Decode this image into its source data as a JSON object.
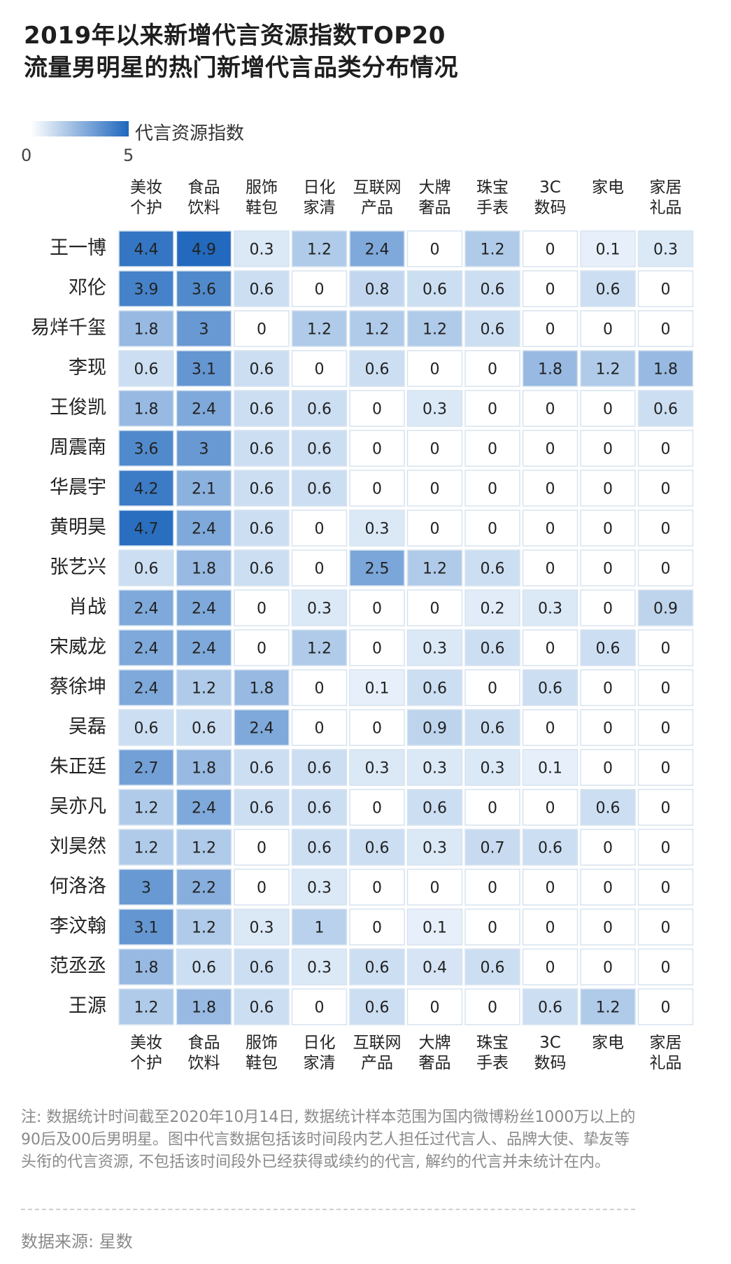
{
  "title_line1": "2019年以来新增代言资源指数TOP20",
  "title_line2": "流量男明星的热门新增代言品类分布情况",
  "legend": {
    "label": "代言资源指数",
    "min": "0",
    "max": "5"
  },
  "columns": [
    [
      "美妆",
      "个护"
    ],
    [
      "食品",
      "饮料"
    ],
    [
      "服饰",
      "鞋包"
    ],
    [
      "日化",
      "家清"
    ],
    [
      "互联网",
      "产品"
    ],
    [
      "大牌",
      "奢品"
    ],
    [
      "珠宝",
      "手表"
    ],
    [
      "3C",
      "数码"
    ],
    [
      "家电",
      ""
    ],
    [
      "家居",
      "礼品"
    ]
  ],
  "note": "注: 数据统计时间截至2020年10月14日, 数据统计样本范围为国内微博粉丝1000万以上的90后及00后男明星。图中代言数据包括该时间段内艺人担任过代言人、品牌大使、挚友等头衔的代言资源, 不包括该时间段外已经获得或续约的代言, 解约的代言并未统计在内。",
  "source": "数据来源: 星数",
  "colors": {
    "low": "#eef5fc",
    "high": "#1f67bd",
    "cell_border": "#d7e3ef"
  },
  "chart_data": {
    "type": "heatmap",
    "title": "2019年以来新增代言资源指数TOP20流量男明星的热门新增代言品类分布情况",
    "x_categories": [
      "美妆个护",
      "食品饮料",
      "服饰鞋包",
      "日化家清",
      "互联网产品",
      "大牌奢品",
      "珠宝手表",
      "3C数码",
      "家电",
      "家居礼品"
    ],
    "y_categories": [
      "王一博",
      "邓伦",
      "易烊千玺",
      "李现",
      "王俊凯",
      "周震南",
      "华晨宇",
      "黄明昊",
      "张艺兴",
      "肖战",
      "宋威龙",
      "蔡徐坤",
      "吴磊",
      "朱正廷",
      "吴亦凡",
      "刘昊然",
      "何洛洛",
      "李汶翰",
      "范丞丞",
      "王源"
    ],
    "value_range": [
      0,
      5
    ],
    "values": [
      [
        4.4,
        4.9,
        0.3,
        1.2,
        2.4,
        0,
        1.2,
        0,
        0.1,
        0.3
      ],
      [
        3.9,
        3.6,
        0.6,
        0,
        0.8,
        0.6,
        0.6,
        0,
        0.6,
        0
      ],
      [
        1.8,
        3,
        0,
        1.2,
        1.2,
        1.2,
        0.6,
        0,
        0,
        0
      ],
      [
        0.6,
        3.1,
        0.6,
        0,
        0.6,
        0,
        0,
        1.8,
        1.2,
        1.8
      ],
      [
        1.8,
        2.4,
        0.6,
        0.6,
        0,
        0.3,
        0,
        0,
        0,
        0.6
      ],
      [
        3.6,
        3,
        0.6,
        0.6,
        0,
        0,
        0,
        0,
        0,
        0
      ],
      [
        4.2,
        2.1,
        0.6,
        0.6,
        0,
        0,
        0,
        0,
        0,
        0
      ],
      [
        4.7,
        2.4,
        0.6,
        0,
        0.3,
        0,
        0,
        0,
        0,
        0
      ],
      [
        0.6,
        1.8,
        0.6,
        0,
        2.5,
        1.2,
        0.6,
        0,
        0,
        0
      ],
      [
        2.4,
        2.4,
        0,
        0.3,
        0,
        0,
        0.2,
        0.3,
        0,
        0.9
      ],
      [
        2.4,
        2.4,
        0,
        1.2,
        0,
        0.3,
        0.6,
        0,
        0.6,
        0
      ],
      [
        2.4,
        1.2,
        1.8,
        0,
        0.1,
        0.6,
        0,
        0.6,
        0,
        0
      ],
      [
        0.6,
        0.6,
        2.4,
        0,
        0,
        0.9,
        0.6,
        0,
        0,
        0
      ],
      [
        2.7,
        1.8,
        0.6,
        0.6,
        0.3,
        0.3,
        0.3,
        0.1,
        0,
        0
      ],
      [
        1.2,
        2.4,
        0.6,
        0.6,
        0,
        0.6,
        0,
        0,
        0.6,
        0
      ],
      [
        1.2,
        1.2,
        0,
        0.6,
        0.6,
        0.3,
        0.7,
        0.6,
        0,
        0
      ],
      [
        3,
        2.2,
        0,
        0.3,
        0,
        0,
        0,
        0,
        0,
        0
      ],
      [
        3.1,
        1.2,
        0.3,
        1,
        0,
        0.1,
        0,
        0,
        0,
        0
      ],
      [
        1.8,
        0.6,
        0.6,
        0.3,
        0.6,
        0.4,
        0.6,
        0,
        0,
        0
      ],
      [
        1.2,
        1.8,
        0.6,
        0,
        0.6,
        0,
        0,
        0.6,
        1.2,
        0
      ]
    ]
  }
}
